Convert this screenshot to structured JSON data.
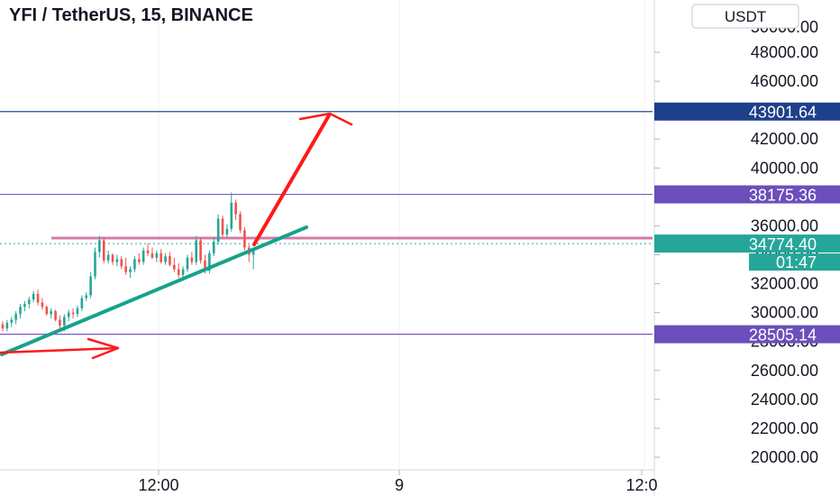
{
  "header": {
    "title": "YFI / TetherUS, 15, BINANCE",
    "currency_button": "USDT"
  },
  "chart_data": {
    "type": "candlestick",
    "ylim": [
      19400,
      52000
    ],
    "y_ticks": [
      20000,
      22000,
      24000,
      26000,
      28000,
      30000,
      32000,
      34000,
      36000,
      38000,
      40000,
      42000,
      46000,
      48000
    ],
    "y_tick_labels": [
      "20000.00",
      "22000.00",
      "24000.00",
      "26000.00",
      "28000.00",
      "30000.00",
      "32000.00",
      "34000.00",
      "36000.00",
      "38000.00",
      "40000.00",
      "42000.00",
      "46000.00",
      "48000.00"
    ],
    "x_tick_labels": [
      "12:00",
      "9",
      "12:0"
    ],
    "price_labels": [
      {
        "value": 43901.64,
        "label": "43901.64",
        "color": "#1e3f8a",
        "line_color": "#2c4a8e"
      },
      {
        "value": 38175.36,
        "label": "38175.36",
        "color": "#6b4fbb",
        "line_color": "#7e57c2"
      },
      {
        "value": 34774.4,
        "label": "34774.40",
        "color": "#26a69a",
        "line_color": "#26a69a"
      },
      {
        "value": 28505.14,
        "label": "28505.14",
        "color": "#6b4fbb",
        "line_color": "#7e57c2"
      }
    ],
    "countdown": "01:47",
    "candles": [
      [
        29200,
        29400,
        28700,
        28900
      ],
      [
        28900,
        29500,
        28700,
        29300
      ],
      [
        29300,
        29700,
        29000,
        29500
      ],
      [
        29500,
        30100,
        29200,
        29900
      ],
      [
        29900,
        30600,
        29600,
        30400
      ],
      [
        30400,
        30800,
        30100,
        30600
      ],
      [
        30600,
        31100,
        30300,
        30900
      ],
      [
        30900,
        31500,
        30700,
        31300
      ],
      [
        31300,
        31600,
        30500,
        30700
      ],
      [
        30700,
        31000,
        30200,
        30400
      ],
      [
        30400,
        30500,
        29800,
        29900
      ],
      [
        29900,
        30300,
        29600,
        30100
      ],
      [
        30100,
        30200,
        29400,
        29500
      ],
      [
        29500,
        29800,
        28900,
        29100
      ],
      [
        29100,
        29900,
        28700,
        29700
      ],
      [
        29700,
        30200,
        29400,
        30000
      ],
      [
        30000,
        30300,
        29600,
        29900
      ],
      [
        29900,
        30500,
        29700,
        30300
      ],
      [
        30300,
        31200,
        30100,
        31000
      ],
      [
        31000,
        31400,
        30800,
        31200
      ],
      [
        31200,
        32800,
        31000,
        32500
      ],
      [
        32500,
        34500,
        32300,
        34200
      ],
      [
        34200,
        35300,
        33800,
        35000
      ],
      [
        35000,
        35200,
        33400,
        33600
      ],
      [
        33600,
        34300,
        33400,
        34000
      ],
      [
        34000,
        34100,
        33300,
        33500
      ],
      [
        33500,
        34000,
        33200,
        33700
      ],
      [
        33700,
        33900,
        33000,
        33200
      ],
      [
        33200,
        33800,
        32600,
        32800
      ],
      [
        32800,
        33200,
        32400,
        33000
      ],
      [
        33000,
        33900,
        32800,
        33700
      ],
      [
        33700,
        34100,
        33300,
        33500
      ],
      [
        33500,
        34500,
        33300,
        34300
      ],
      [
        34300,
        34800,
        33900,
        34100
      ],
      [
        34100,
        34500,
        33700,
        33800
      ],
      [
        33800,
        34300,
        33500,
        34100
      ],
      [
        34100,
        34400,
        33400,
        33500
      ],
      [
        33500,
        34100,
        33300,
        33900
      ],
      [
        33900,
        34200,
        33200,
        33300
      ],
      [
        33300,
        33800,
        32800,
        33000
      ],
      [
        33000,
        33400,
        32400,
        32600
      ],
      [
        32600,
        33200,
        32400,
        33000
      ],
      [
        33000,
        34000,
        32800,
        33800
      ],
      [
        33800,
        34200,
        33300,
        33500
      ],
      [
        33500,
        35300,
        33300,
        35000
      ],
      [
        35000,
        35200,
        33400,
        33600
      ],
      [
        33600,
        34000,
        32700,
        32900
      ],
      [
        32900,
        34300,
        32700,
        34100
      ],
      [
        34100,
        35200,
        33900,
        34900
      ],
      [
        34900,
        36800,
        34700,
        36500
      ],
      [
        36500,
        36700,
        35200,
        35400
      ],
      [
        35400,
        36100,
        35200,
        35800
      ],
      [
        35800,
        38300,
        35600,
        37600
      ],
      [
        37600,
        37800,
        36400,
        36800
      ],
      [
        36800,
        37000,
        35500,
        35700
      ],
      [
        35700,
        35900,
        34300,
        34500
      ],
      [
        34500,
        34700,
        33500,
        34000
      ],
      [
        34000,
        34400,
        33000,
        34300
      ]
    ]
  },
  "annotations": {
    "trendline": {
      "from": [
        28000,
        27200
      ],
      "to": [
        28150,
        36100
      ]
    },
    "arrows": [
      "up-right arrow",
      "right arrow"
    ]
  }
}
